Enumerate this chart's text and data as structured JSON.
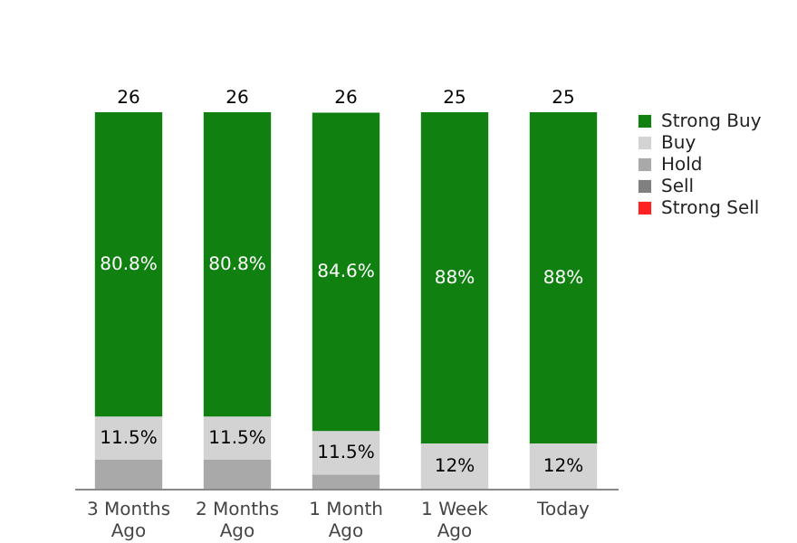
{
  "chart_data": {
    "type": "bar",
    "stacked": true,
    "categories": [
      "3 Months Ago",
      "2 Months Ago",
      "1 Month Ago",
      "1 Week Ago",
      "Today"
    ],
    "series": [
      {
        "name": "Strong Sell",
        "color": "#ff2020",
        "values": [
          0,
          0,
          0,
          0,
          0
        ],
        "value_labels": [
          null,
          null,
          null,
          null,
          null
        ]
      },
      {
        "name": "Sell",
        "color": "#808080",
        "values": [
          0,
          0,
          0,
          0,
          0
        ],
        "value_labels": [
          null,
          null,
          null,
          null,
          null
        ]
      },
      {
        "name": "Hold",
        "color": "#a9a9a9",
        "values": [
          7.7,
          7.7,
          3.8,
          0,
          0
        ],
        "value_labels": [
          null,
          null,
          null,
          null,
          null
        ]
      },
      {
        "name": "Buy",
        "color": "#d3d3d3",
        "values": [
          11.5,
          11.5,
          11.5,
          12,
          12
        ],
        "value_labels": [
          "11.5%",
          "11.5%",
          "11.5%",
          "12%",
          "12%"
        ]
      },
      {
        "name": "Strong Buy",
        "color": "#108010",
        "values": [
          80.8,
          80.8,
          84.6,
          88,
          88
        ],
        "value_labels": [
          "80.8%",
          "80.8%",
          "84.6%",
          "88%",
          "88%"
        ]
      }
    ],
    "annotations": [
      "26",
      "26",
      "26",
      "25",
      "25"
    ],
    "legend": "right"
  }
}
